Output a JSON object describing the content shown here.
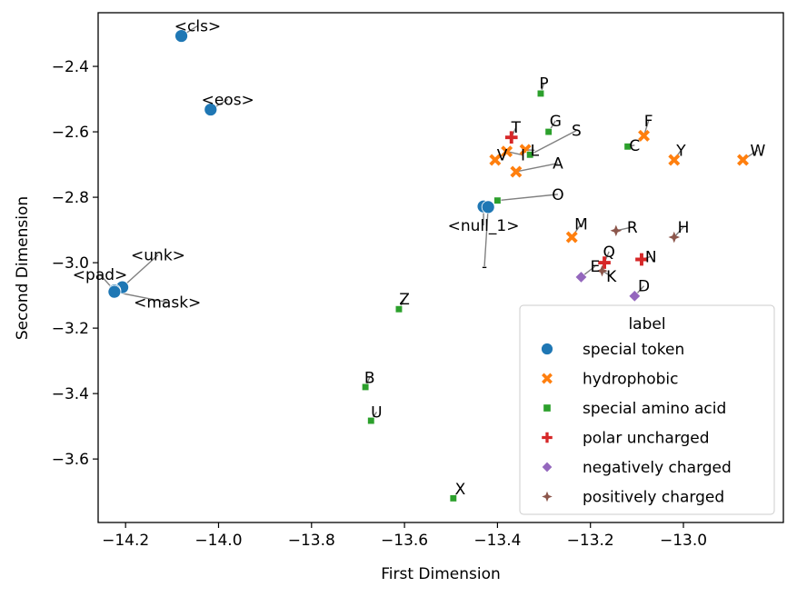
{
  "chart_data": {
    "type": "scatter",
    "title": "",
    "xlabel": "First Dimension",
    "ylabel": "Second Dimension",
    "xlim": [
      -14.259,
      -12.785
    ],
    "ylim": [
      -3.794,
      -2.236
    ],
    "xticks": [
      -14.2,
      -14.0,
      -13.8,
      -13.6,
      -13.4,
      -13.2,
      -13.0
    ],
    "xtick_labels": [
      "−14.2",
      "−14.0",
      "−13.8",
      "−13.6",
      "−13.4",
      "−13.2",
      "−13.0"
    ],
    "yticks": [
      -2.4,
      -2.6,
      -2.8,
      -3.0,
      -3.2,
      -3.4,
      -3.6
    ],
    "ytick_labels": [
      "−2.4",
      "−2.6",
      "−2.8",
      "−3.0",
      "−3.2",
      "−3.4",
      "−3.6"
    ],
    "grid": false,
    "legend": {
      "title": "label",
      "placement": "lower-right",
      "entries": [
        {
          "name": "special token",
          "marker": "circle",
          "color": "#1f77b4"
        },
        {
          "name": "hydrophobic",
          "marker": "x",
          "color": "#ff7f0e"
        },
        {
          "name": "special amino acid",
          "marker": "square",
          "color": "#2ca02c"
        },
        {
          "name": "polar uncharged",
          "marker": "plus",
          "color": "#d62728"
        },
        {
          "name": "negatively charged",
          "marker": "diamond",
          "color": "#9467bd"
        },
        {
          "name": "positively charged",
          "marker": "star4",
          "color": "#8c564b"
        }
      ]
    },
    "series": [
      {
        "name": "special token",
        "points": [
          {
            "label": "<cls>",
            "x": -14.08,
            "y": -2.307,
            "lx": -14.045,
            "ly": -2.265
          },
          {
            "label": "<eos>",
            "x": -14.017,
            "y": -2.532,
            "lx": -13.98,
            "ly": -2.49
          },
          {
            "label": "<unk>",
            "x": -14.207,
            "y": -3.075,
            "lx": -14.13,
            "ly": -2.965
          },
          {
            "label": "<pad>",
            "x": -14.224,
            "y": -3.085,
            "lx": -14.255,
            "ly": -3.025
          },
          {
            "label": "<mask>",
            "x": -14.224,
            "y": -3.089,
            "lx": -14.11,
            "ly": -3.11
          },
          {
            "label": "<null_1>",
            "x": -13.43,
            "y": -2.828,
            "lx": -13.43,
            "ly": -2.875
          },
          {
            "label": "-",
            "x": -13.42,
            "y": -2.83,
            "lx": -13.428,
            "ly": -3.0
          }
        ]
      },
      {
        "name": "hydrophobic",
        "points": [
          {
            "label": "V",
            "x": -13.405,
            "y": -2.686,
            "lx": -13.39,
            "ly": -2.66
          },
          {
            "label": "I",
            "x": -13.38,
            "y": -2.66,
            "lx": -13.345,
            "ly": -2.66
          },
          {
            "label": "L",
            "x": -13.34,
            "y": -2.655,
            "lx": -13.32,
            "ly": -2.645
          },
          {
            "label": "A",
            "x": -13.36,
            "y": -2.722,
            "lx": -13.27,
            "ly": -2.685
          },
          {
            "label": "F",
            "x": -13.085,
            "y": -2.612,
            "lx": -13.075,
            "ly": -2.555
          },
          {
            "label": "Y",
            "x": -13.02,
            "y": -2.686,
            "lx": -13.005,
            "ly": -2.645
          },
          {
            "label": "W",
            "x": -12.872,
            "y": -2.686,
            "lx": -12.84,
            "ly": -2.645
          },
          {
            "label": "M",
            "x": -13.24,
            "y": -2.922,
            "lx": -13.22,
            "ly": -2.87
          }
        ]
      },
      {
        "name": "special amino acid",
        "points": [
          {
            "label": "P",
            "x": -13.307,
            "y": -2.483,
            "lx": -13.3,
            "ly": -2.44
          },
          {
            "label": "G",
            "x": -13.29,
            "y": -2.6,
            "lx": -13.275,
            "ly": -2.555
          },
          {
            "label": "S",
            "x": -13.33,
            "y": -2.67,
            "lx": -13.23,
            "ly": -2.585
          },
          {
            "label": "C",
            "x": -13.12,
            "y": -2.645,
            "lx": -13.105,
            "ly": -2.63
          },
          {
            "label": "O",
            "x": -13.4,
            "y": -2.81,
            "lx": -13.27,
            "ly": -2.78
          },
          {
            "label": "Z",
            "x": -13.612,
            "y": -3.142,
            "lx": -13.6,
            "ly": -3.1
          },
          {
            "label": "B",
            "x": -13.684,
            "y": -3.38,
            "lx": -13.675,
            "ly": -3.34
          },
          {
            "label": "U",
            "x": -13.672,
            "y": -3.483,
            "lx": -13.66,
            "ly": -3.445
          },
          {
            "label": "X",
            "x": -13.495,
            "y": -3.72,
            "lx": -13.48,
            "ly": -3.68
          }
        ]
      },
      {
        "name": "polar uncharged",
        "points": [
          {
            "label": "T",
            "x": -13.37,
            "y": -2.617,
            "lx": -13.36,
            "ly": -2.575
          },
          {
            "label": "Q",
            "x": -13.17,
            "y": -3.0,
            "lx": -13.16,
            "ly": -2.955
          },
          {
            "label": "N",
            "x": -13.09,
            "y": -2.99,
            "lx": -13.07,
            "ly": -2.97
          }
        ]
      },
      {
        "name": "negatively charged",
        "points": [
          {
            "label": "E",
            "x": -13.22,
            "y": -3.044,
            "lx": -13.19,
            "ly": -3.0
          },
          {
            "label": "D",
            "x": -13.105,
            "y": -3.102,
            "lx": -13.085,
            "ly": -3.06
          }
        ]
      },
      {
        "name": "positively charged",
        "points": [
          {
            "label": "R",
            "x": -13.145,
            "y": -2.902,
            "lx": -13.11,
            "ly": -2.88
          },
          {
            "label": "H",
            "x": -13.02,
            "y": -2.922,
            "lx": -13.0,
            "ly": -2.88
          },
          {
            "label": "K",
            "x": -13.175,
            "y": -3.025,
            "lx": -13.155,
            "ly": -3.03
          }
        ]
      }
    ]
  }
}
